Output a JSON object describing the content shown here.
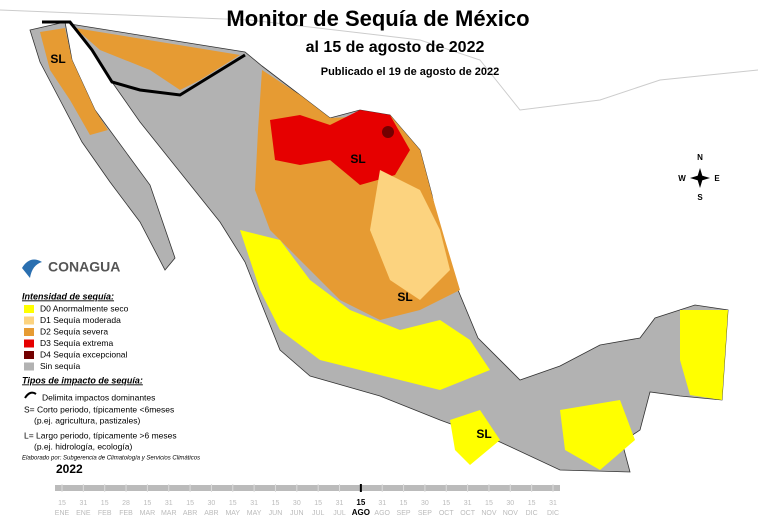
{
  "header": {
    "title": "Monitor de Sequía de México",
    "date": "al 15 de agosto de 2022",
    "published": "Publicado el 19 de agosto de 2022"
  },
  "logo": {
    "name": "CONAGUA"
  },
  "legend": {
    "title": "Intensidad de sequía:",
    "items": [
      {
        "label": "D0 Anormalmente seco",
        "color": "#ffff00"
      },
      {
        "label": "D1 Sequía moderada",
        "color": "#fcd37f"
      },
      {
        "label": "D2 Sequía severa",
        "color": "#e69b33"
      },
      {
        "label": "D3 Sequía extrema",
        "color": "#e60000"
      },
      {
        "label": "D4 Sequía excepcional",
        "color": "#730000"
      },
      {
        "label": "Sin sequía",
        "color": "#b2b2b2"
      }
    ]
  },
  "impact_types": {
    "title": "Tipos de impacto de sequía:",
    "boundary": "Delimita impactos dominantes",
    "short": "S= Corto periodo, típicamente <6meses",
    "short_example": "(p.ej. agricultura, pastizales)",
    "long": "L= Largo periodo, típicamente >6 meses",
    "long_example": "(p.ej. hidrología, ecología)"
  },
  "credit": "Elaborado por: Subgerencia de Climatología y Servicios Climáticos",
  "map_labels": [
    "SL",
    "SL",
    "SL",
    "SL"
  ],
  "compass": {
    "n": "N",
    "s": "S",
    "e": "E",
    "w": "W"
  },
  "timeline": {
    "year": "2022",
    "before": [
      {
        "day": "15",
        "month": "ENE"
      },
      {
        "day": "31",
        "month": "ENE"
      },
      {
        "day": "15",
        "month": "FEB"
      },
      {
        "day": "28",
        "month": "FEB"
      },
      {
        "day": "15",
        "month": "MAR"
      },
      {
        "day": "31",
        "month": "MAR"
      },
      {
        "day": "15",
        "month": "ABR"
      },
      {
        "day": "30",
        "month": "ABR"
      },
      {
        "day": "15",
        "month": "MAY"
      },
      {
        "day": "31",
        "month": "MAY"
      },
      {
        "day": "15",
        "month": "JUN"
      },
      {
        "day": "30",
        "month": "JUN"
      },
      {
        "day": "15",
        "month": "JUL"
      },
      {
        "day": "31",
        "month": "JUL"
      }
    ],
    "current": {
      "day": "15",
      "month": "AGO"
    },
    "after": [
      {
        "day": "31",
        "month": "AGO"
      },
      {
        "day": "15",
        "month": "SEP"
      },
      {
        "day": "30",
        "month": "SEP"
      },
      {
        "day": "15",
        "month": "OCT"
      },
      {
        "day": "31",
        "month": "OCT"
      },
      {
        "day": "15",
        "month": "NOV"
      },
      {
        "day": "30",
        "month": "NOV"
      },
      {
        "day": "15",
        "month": "DIC"
      },
      {
        "day": "31",
        "month": "DIC"
      }
    ]
  }
}
